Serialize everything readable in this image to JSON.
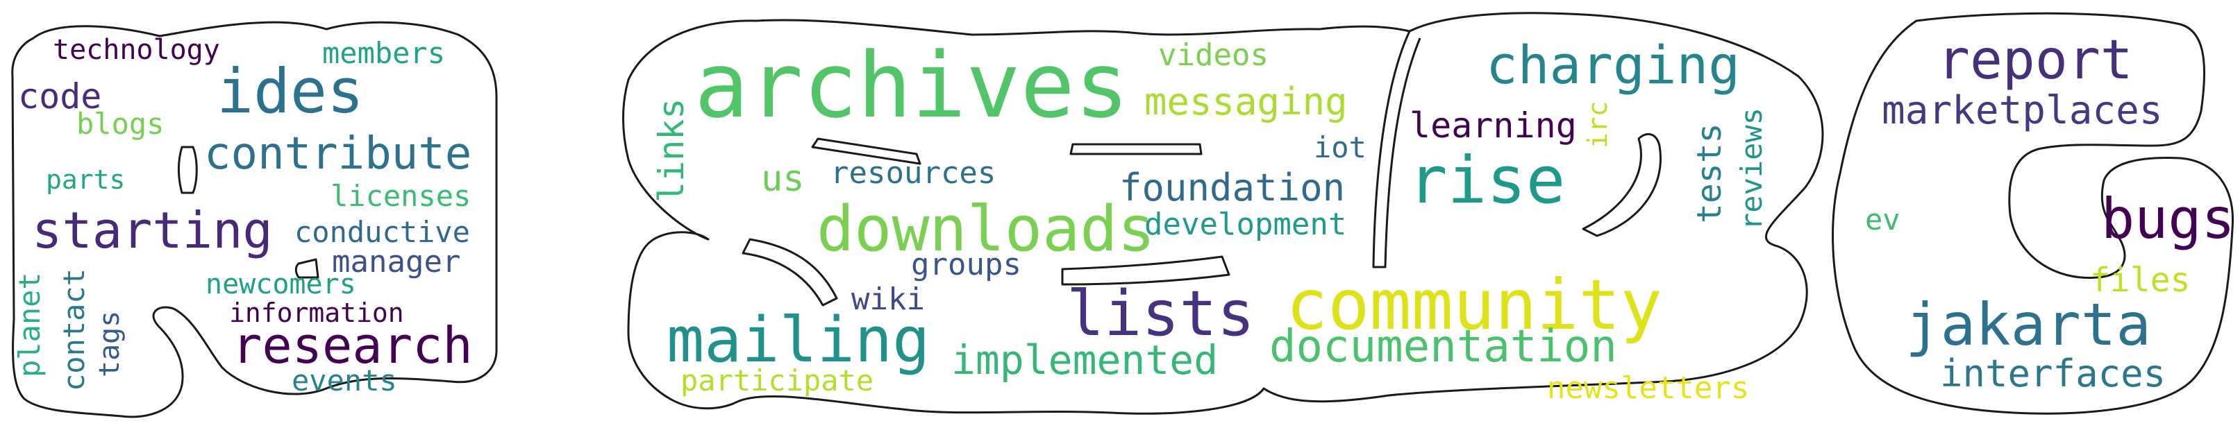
{
  "words": [
    {
      "text": "technology",
      "color": "#440154"
    },
    {
      "text": "members",
      "color": "#20a386"
    },
    {
      "text": "ides",
      "color": "#2c728e"
    },
    {
      "text": "code",
      "color": "#472d7b"
    },
    {
      "text": "blogs",
      "color": "#75d054"
    },
    {
      "text": "contribute",
      "color": "#2c728e"
    },
    {
      "text": "parts",
      "color": "#22a884"
    },
    {
      "text": "licenses",
      "color": "#3bbb75"
    },
    {
      "text": "starting",
      "color": "#482878"
    },
    {
      "text": "conductive",
      "color": "#31688e"
    },
    {
      "text": "manager",
      "color": "#3b528b"
    },
    {
      "text": "newcomers",
      "color": "#1fa187"
    },
    {
      "text": "information",
      "color": "#440154"
    },
    {
      "text": "planet",
      "color": "#2ab07f"
    },
    {
      "text": "contact",
      "color": "#2a788e"
    },
    {
      "text": "tags",
      "color": "#365c8d"
    },
    {
      "text": "research",
      "color": "#440154"
    },
    {
      "text": "events",
      "color": "#25858e"
    },
    {
      "text": "archives",
      "color": "#52c569"
    },
    {
      "text": "videos",
      "color": "#7ad151"
    },
    {
      "text": "messaging",
      "color": "#addc30"
    },
    {
      "text": "links",
      "color": "#35b779"
    },
    {
      "text": "us",
      "color": "#6ccd5a"
    },
    {
      "text": "resources",
      "color": "#2d718e"
    },
    {
      "text": "iot",
      "color": "#2f6b8e"
    },
    {
      "text": "foundation",
      "color": "#306a8e"
    },
    {
      "text": "downloads",
      "color": "#7ad151"
    },
    {
      "text": "development",
      "color": "#1e9b8a"
    },
    {
      "text": "groups",
      "color": "#39568c"
    },
    {
      "text": "wiki",
      "color": "#3e4a89"
    },
    {
      "text": "lists",
      "color": "#46327e"
    },
    {
      "text": "mailing",
      "color": "#21918c"
    },
    {
      "text": "implemented",
      "color": "#35b779"
    },
    {
      "text": "participate",
      "color": "#b5de2b"
    },
    {
      "text": "charging",
      "color": "#25858e"
    },
    {
      "text": "learning",
      "color": "#440154"
    },
    {
      "text": "irc",
      "color": "#bddf26"
    },
    {
      "text": "rise",
      "color": "#1f9a8a"
    },
    {
      "text": "tests",
      "color": "#27808e"
    },
    {
      "text": "reviews",
      "color": "#1f968b"
    },
    {
      "text": "community",
      "color": "#dde318"
    },
    {
      "text": "documentation",
      "color": "#4ac16d"
    },
    {
      "text": "newsletters",
      "color": "#e5e419"
    },
    {
      "text": "report",
      "color": "#46307e"
    },
    {
      "text": "marketplaces",
      "color": "#443983"
    },
    {
      "text": "ev",
      "color": "#3dbc74"
    },
    {
      "text": "bugs",
      "color": "#440154"
    },
    {
      "text": "files",
      "color": "#c2df23"
    },
    {
      "text": "jakarta",
      "color": "#2c728e"
    },
    {
      "text": "interfaces",
      "color": "#2a778e"
    }
  ]
}
